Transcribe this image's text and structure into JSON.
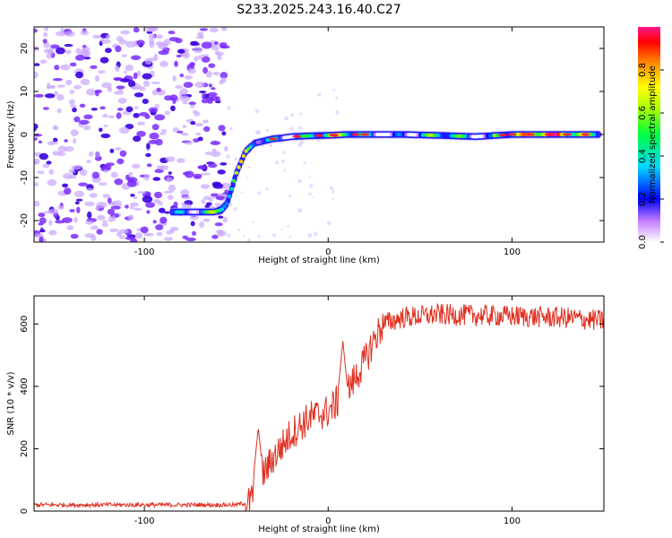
{
  "title": "S233.2025.243.16.40.C27",
  "colors": {
    "snr_line": "#e03020",
    "frame": "#000000"
  },
  "chart_data": [
    {
      "type": "heatmap",
      "name": "spectrogram",
      "xlabel": "Height of straight line (km)",
      "ylabel": "Frequency (Hz)",
      "xlim": [
        -160,
        150
      ],
      "ylim": [
        -25,
        25
      ],
      "xticks": [
        -100,
        0,
        100
      ],
      "yticks": [
        20,
        10,
        0,
        -10,
        -20
      ],
      "colorbar": {
        "label": "Normalized spectral amplitude",
        "range": [
          0,
          1
        ],
        "ticks": [
          "0.0",
          "0.2",
          "0.4",
          "0.6",
          "0.8"
        ]
      },
      "trace": {
        "description": "frequency of the peak spectral amplitude vs height",
        "x": [
          -85,
          -70,
          -62,
          -58,
          -55,
          -52,
          -50,
          -47,
          -45,
          -40,
          -35,
          -30,
          -25,
          -20,
          -10,
          0,
          10,
          20,
          40,
          60,
          80,
          100,
          120,
          148
        ],
        "y": [
          -18,
          -18,
          -18,
          -17.5,
          -16,
          -12,
          -9,
          -6,
          -4,
          -2,
          -1.5,
          -1,
          -0.8,
          -0.5,
          -0.3,
          -0.2,
          0,
          0,
          0,
          -0.2,
          -0.5,
          0,
          0,
          0
        ]
      },
      "noise_region_x": [
        -160,
        -55
      ]
    },
    {
      "type": "line",
      "name": "snr",
      "xlabel": "Height of straight line (km)",
      "ylabel": "SNR (10 * v/v)",
      "xlim": [
        -160,
        150
      ],
      "ylim": [
        0,
        690
      ],
      "xticks": [
        -100,
        0,
        100
      ],
      "yticks": [
        0,
        200,
        400,
        600
      ],
      "envelope": {
        "x": [
          -160,
          -50,
          -42,
          -40,
          -38,
          -35,
          -30,
          -20,
          -10,
          0,
          10,
          20,
          25,
          30,
          40,
          60,
          100,
          130,
          150
        ],
        "y": [
          20,
          20,
          30,
          80,
          150,
          120,
          170,
          250,
          300,
          320,
          380,
          480,
          550,
          600,
          620,
          630,
          625,
          620,
          610
        ]
      },
      "spikes": {
        "x": [
          -38,
          8
        ],
        "y": [
          270,
          545
        ]
      }
    }
  ]
}
